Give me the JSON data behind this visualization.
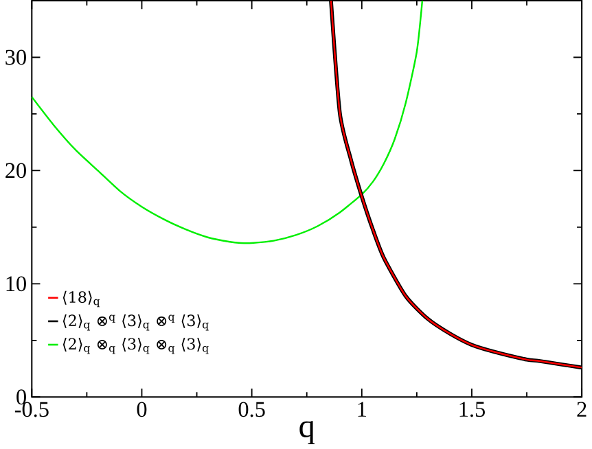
{
  "chart_data": {
    "type": "line",
    "xlabel": "q",
    "xlim": [
      -0.5,
      2
    ],
    "ylim": [
      0,
      35
    ],
    "xticks": [
      -0.5,
      0,
      0.5,
      1,
      1.5,
      2
    ],
    "yticks": [
      0,
      10,
      20,
      30
    ],
    "legend": "bottom left",
    "grid": false,
    "marker": "none",
    "line_style": "solid",
    "series": [
      {
        "name": "⟨18⟩$_{q}$",
        "color": "#ff0000",
        "x": [
          0.86,
          0.9,
          0.95,
          1.0,
          1.05,
          1.1,
          1.2,
          1.3,
          1.4,
          1.5,
          1.6,
          1.75,
          1.8,
          1.9,
          2.0
        ],
        "values": [
          35,
          25.1,
          21,
          17.7,
          14.8,
          12.3,
          8.9,
          6.9,
          5.6,
          4.6,
          4.0,
          3.3,
          3.2,
          2.9,
          2.6
        ]
      },
      {
        "name": "⟨2⟩$_{q}$ ⊗$^{q}$ ⟨3⟩$_{q}$ ⊗$^{q}$ ⟨3⟩$_{q}$",
        "color": "#000000",
        "x": [
          0.86,
          0.9,
          0.95,
          1.0,
          1.05,
          1.1,
          1.2,
          1.3,
          1.4,
          1.5,
          1.6,
          1.75,
          1.8,
          1.9,
          2.0
        ],
        "values": [
          35,
          25.1,
          21,
          17.7,
          14.8,
          12.3,
          8.9,
          6.9,
          5.6,
          4.6,
          4.0,
          3.3,
          3.2,
          2.9,
          2.6
        ]
      },
      {
        "name": "⟨2⟩$_{q}$ ⊗$_{q}$ ⟨3⟩$_{q}$ ⊗$_{q}$ ⟨3⟩$_{q}$",
        "color": "#00ee00",
        "x": [
          -0.5,
          -0.4,
          -0.3,
          -0.2,
          -0.1,
          0,
          0.1,
          0.2,
          0.3,
          0.4,
          0.45,
          0.5,
          0.6,
          0.7,
          0.8,
          0.9,
          1.0,
          1.05,
          1.1,
          1.15,
          1.2,
          1.25,
          1.275
        ],
        "values": [
          26.5,
          24.0,
          21.8,
          20.0,
          18.2,
          16.8,
          15.7,
          14.8,
          14.1,
          13.7,
          13.6,
          13.6,
          13.8,
          14.3,
          15.1,
          16.3,
          17.9,
          19.0,
          20.6,
          22.8,
          26.0,
          30.5,
          35
        ]
      }
    ]
  }
}
